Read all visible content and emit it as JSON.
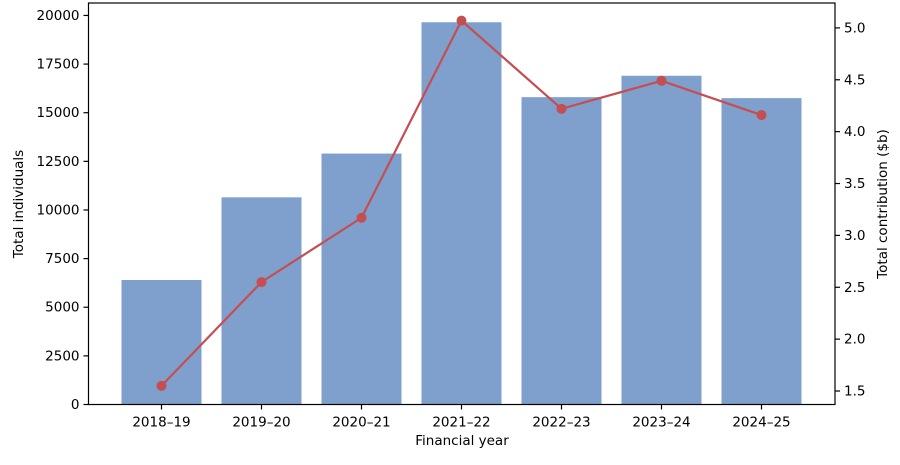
{
  "chart_data": {
    "type": "bar+line (dual y-axis)",
    "title": "",
    "categories": [
      "2018–19",
      "2019–20",
      "2020–21",
      "2021–22",
      "2022–23",
      "2023–24",
      "2024–25"
    ],
    "series": [
      {
        "name": "Total individuals",
        "type": "bar",
        "axis": "left",
        "values": [
          6400,
          10650,
          12900,
          19650,
          15800,
          16900,
          15750
        ],
        "color": "#7fa0cc"
      },
      {
        "name": "Total contribution ($b)",
        "type": "line",
        "axis": "right",
        "marker": "circle",
        "values": [
          1.55,
          2.55,
          3.17,
          5.07,
          4.22,
          4.49,
          4.16
        ],
        "color": "#c44e52"
      }
    ],
    "xlabel": "Financial year",
    "ylabel_left": "Total individuals",
    "ylabel_right": "Total contribution ($b)",
    "left_axis": {
      "ticks": [
        0,
        2500,
        5000,
        7500,
        10000,
        12500,
        15000,
        17500,
        20000
      ],
      "range": [
        0,
        20640
      ]
    },
    "right_axis": {
      "ticks": [
        1.5,
        2.0,
        2.5,
        3.0,
        3.5,
        4.0,
        4.5,
        5.0
      ],
      "range": [
        1.37,
        5.24
      ]
    },
    "grid": false,
    "legend": "none",
    "colors": {
      "bar_fill": "#7fa0cc",
      "line_stroke": "#c44e52",
      "spine": "#000000",
      "background": "#ffffff"
    }
  }
}
